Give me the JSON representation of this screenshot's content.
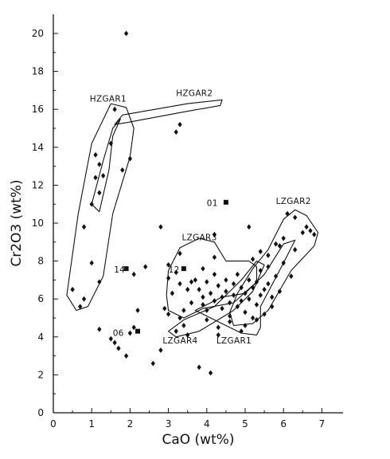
{
  "chart_data": {
    "type": "scatter",
    "title": "",
    "xlabel": "CaO (wt%)",
    "ylabel": "Cr2O3 (wt%)",
    "xlim": [
      0,
      7.5
    ],
    "ylim": [
      0,
      21
    ],
    "xticks": [
      0,
      1,
      2,
      3,
      4,
      5,
      6,
      7
    ],
    "yticks": [
      0,
      2,
      4,
      6,
      8,
      10,
      12,
      14,
      16,
      18,
      20
    ],
    "grid": false,
    "legend": "none",
    "series": [
      {
        "marker": "diamond",
        "points": [
          [
            1.9,
            20.0
          ],
          [
            3.3,
            15.2
          ],
          [
            3.2,
            14.8
          ],
          [
            1.6,
            16.0
          ],
          [
            1.5,
            14.2
          ],
          [
            1.1,
            13.6
          ],
          [
            1.2,
            13.1
          ],
          [
            2.0,
            13.4
          ],
          [
            1.3,
            12.5
          ],
          [
            1.8,
            12.8
          ],
          [
            1.1,
            12.4
          ],
          [
            1.2,
            11.6
          ],
          [
            1.0,
            11.0
          ],
          [
            0.8,
            9.8
          ],
          [
            1.0,
            7.9
          ],
          [
            1.2,
            6.9
          ],
          [
            0.5,
            6.5
          ],
          [
            0.8,
            6.0
          ],
          [
            0.7,
            5.6
          ],
          [
            1.2,
            4.4
          ],
          [
            1.5,
            3.9
          ],
          [
            1.6,
            3.7
          ],
          [
            1.7,
            3.4
          ],
          [
            1.9,
            3.0
          ],
          [
            2.1,
            4.5
          ],
          [
            2.0,
            4.2
          ],
          [
            2.2,
            5.4
          ],
          [
            2.1,
            7.3
          ],
          [
            2.4,
            7.7
          ],
          [
            2.6,
            2.6
          ],
          [
            2.8,
            3.3
          ],
          [
            2.8,
            9.8
          ],
          [
            3.8,
            2.4
          ],
          [
            4.1,
            2.1
          ],
          [
            4.3,
            4.5
          ],
          [
            4.3,
            4.1
          ],
          [
            4.2,
            9.4
          ],
          [
            5.1,
            9.8
          ],
          [
            3.0,
            7.1
          ],
          [
            3.2,
            7.4
          ],
          [
            3.3,
            6.8
          ],
          [
            3.1,
            6.3
          ],
          [
            3.5,
            6.5
          ],
          [
            3.6,
            5.8
          ],
          [
            3.0,
            5.2
          ],
          [
            3.3,
            5.0
          ],
          [
            3.4,
            4.6
          ],
          [
            3.7,
            7.0
          ],
          [
            3.8,
            6.5
          ],
          [
            3.9,
            6.1
          ],
          [
            3.9,
            5.7
          ],
          [
            4.0,
            6.9
          ],
          [
            4.0,
            5.4
          ],
          [
            4.1,
            6.3
          ],
          [
            4.2,
            5.9
          ],
          [
            4.2,
            7.3
          ],
          [
            4.3,
            6.7
          ],
          [
            4.4,
            6.1
          ],
          [
            4.4,
            5.5
          ],
          [
            4.5,
            7.0
          ],
          [
            4.5,
            6.4
          ],
          [
            4.6,
            5.8
          ],
          [
            4.6,
            5.1
          ],
          [
            4.7,
            6.8
          ],
          [
            4.7,
            6.2
          ],
          [
            4.8,
            5.6
          ],
          [
            4.8,
            7.3
          ],
          [
            4.9,
            6.6
          ],
          [
            4.9,
            5.9
          ],
          [
            5.0,
            6.3
          ],
          [
            5.0,
            5.3
          ],
          [
            5.1,
            7.0
          ],
          [
            5.1,
            6.0
          ],
          [
            5.2,
            6.6
          ],
          [
            5.2,
            5.0
          ],
          [
            5.3,
            6.9
          ],
          [
            5.3,
            5.7
          ],
          [
            5.4,
            6.2
          ],
          [
            5.4,
            7.5
          ],
          [
            5.5,
            6.5
          ],
          [
            5.5,
            5.2
          ],
          [
            5.6,
            6.8
          ],
          [
            5.6,
            7.7
          ],
          [
            5.7,
            6.1
          ],
          [
            5.7,
            5.6
          ],
          [
            5.8,
            7.2
          ],
          [
            5.9,
            6.4
          ],
          [
            5.9,
            8.8
          ],
          [
            5.2,
            8.1
          ],
          [
            5.4,
            8.5
          ],
          [
            5.6,
            8.3
          ],
          [
            5.8,
            8.9
          ],
          [
            6.0,
            9.2
          ],
          [
            6.1,
            10.5
          ],
          [
            6.3,
            10.3
          ],
          [
            6.3,
            8.6
          ],
          [
            6.5,
            9.5
          ],
          [
            6.6,
            9.8
          ],
          [
            6.7,
            9.6
          ],
          [
            6.8,
            9.4
          ],
          [
            6.0,
            7.9
          ],
          [
            6.2,
            7.2
          ],
          [
            5.3,
            4.9
          ],
          [
            5.0,
            4.6
          ],
          [
            4.9,
            4.3
          ],
          [
            4.6,
            4.8
          ],
          [
            3.2,
            4.3
          ],
          [
            3.5,
            4.1
          ],
          [
            3.6,
            6.9
          ],
          [
            3.9,
            7.6
          ],
          [
            4.2,
            8.2
          ],
          [
            3.3,
            8.4
          ],
          [
            3.0,
            7.8
          ],
          [
            2.9,
            5.5
          ],
          [
            3.4,
            5.4
          ],
          [
            4.0,
            4.9
          ]
        ]
      },
      {
        "marker": "square",
        "points": [
          [
            4.5,
            11.1
          ],
          [
            1.9,
            7.6
          ],
          [
            3.4,
            7.6
          ],
          [
            2.2,
            4.3
          ]
        ]
      }
    ],
    "annotations": [
      {
        "text": "HZGAR1",
        "x": 0.95,
        "y": 16.4
      },
      {
        "text": "HZGAR2",
        "x": 3.2,
        "y": 16.7
      },
      {
        "text": "01",
        "x": 4.0,
        "y": 10.9
      },
      {
        "text": "LZGAR2",
        "x": 5.8,
        "y": 11.0
      },
      {
        "text": "LZGAR3",
        "x": 3.35,
        "y": 9.1
      },
      {
        "text": "14",
        "x": 1.58,
        "y": 7.4
      },
      {
        "text": "12",
        "x": 3.0,
        "y": 7.4
      },
      {
        "text": "06",
        "x": 1.55,
        "y": 4.05
      },
      {
        "text": "LZGAR4",
        "x": 2.85,
        "y": 3.65
      },
      {
        "text": "LZGAR1",
        "x": 4.25,
        "y": 3.65
      }
    ]
  }
}
